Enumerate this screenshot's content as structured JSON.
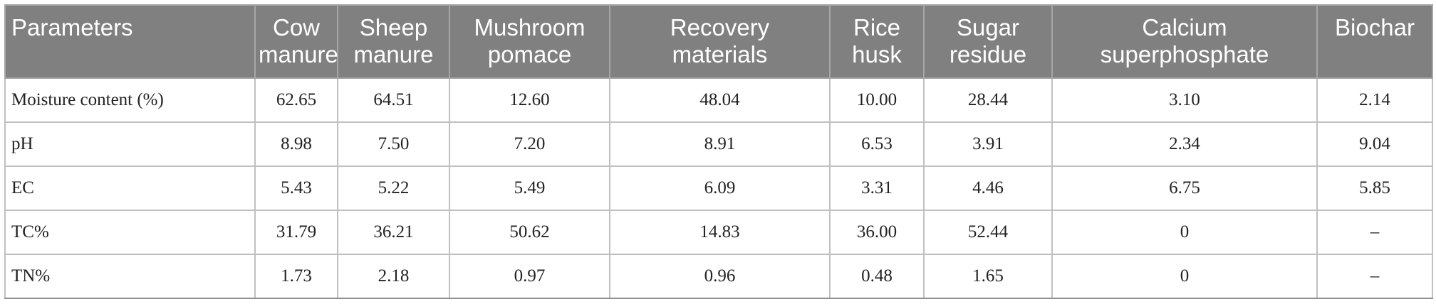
{
  "table": {
    "header": [
      [
        "Parameters"
      ],
      [
        "Cow",
        "manure"
      ],
      [
        "Sheep",
        "manure"
      ],
      [
        "Mushroom",
        "pomace"
      ],
      [
        "Recovery",
        "materials"
      ],
      [
        "Rice",
        "husk"
      ],
      [
        "Sugar",
        "residue"
      ],
      [
        "Calcium",
        "superphosphate"
      ],
      [
        "Biochar"
      ]
    ],
    "rows": [
      [
        "Moisture content (%)",
        "62.65",
        "64.51",
        "12.60",
        "48.04",
        "10.00",
        "28.44",
        "3.10",
        "2.14"
      ],
      [
        "pH",
        "8.98",
        "7.50",
        "7.20",
        "8.91",
        "6.53",
        "3.91",
        "2.34",
        "9.04"
      ],
      [
        "EC",
        "5.43",
        "5.22",
        "5.49",
        "6.09",
        "3.31",
        "4.46",
        "6.75",
        "5.85"
      ],
      [
        "TC%",
        "31.79",
        "36.21",
        "50.62",
        "14.83",
        "36.00",
        "52.44",
        "0",
        "–"
      ],
      [
        "TN%",
        "1.73",
        "2.18",
        "0.97",
        "0.96",
        "0.48",
        "1.65",
        "0",
        "–"
      ]
    ]
  }
}
